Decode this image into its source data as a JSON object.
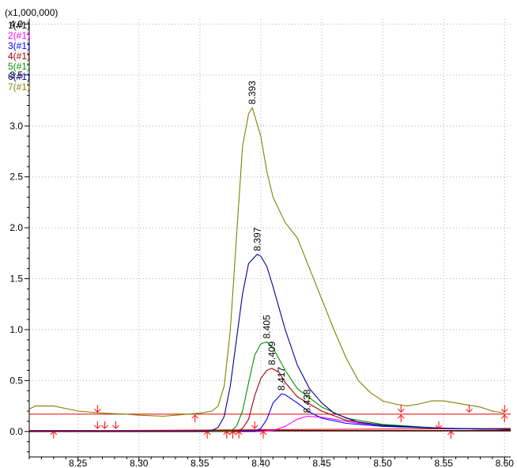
{
  "chart_data": {
    "type": "line",
    "multiplier_label": "(x1,000,000)",
    "xlim": [
      8.21,
      8.605
    ],
    "ylim": [
      -0.25,
      4.05
    ],
    "x_ticks": [
      {
        "value": 8.25,
        "label": "8.25"
      },
      {
        "value": 8.3,
        "label": "8.30"
      },
      {
        "value": 8.35,
        "label": "8.35"
      },
      {
        "value": 8.4,
        "label": "8.40"
      },
      {
        "value": 8.45,
        "label": "8.45"
      },
      {
        "value": 8.5,
        "label": "8.50"
      },
      {
        "value": 8.55,
        "label": "8.55"
      },
      {
        "value": 8.6,
        "label": "8.60"
      }
    ],
    "y_ticks": [
      {
        "value": 0.0,
        "label": "0.0"
      },
      {
        "value": 0.5,
        "label": "0.5"
      },
      {
        "value": 1.0,
        "label": "1.0"
      },
      {
        "value": 1.5,
        "label": "1.5"
      },
      {
        "value": 2.0,
        "label": "2.0"
      },
      {
        "value": 2.5,
        "label": "2.5"
      },
      {
        "value": 3.0,
        "label": "3.0"
      },
      {
        "value": 3.5,
        "label": "3.5"
      },
      {
        "value": 4.0,
        "label": "4.0"
      }
    ],
    "grid": true,
    "legend_position": "top-left",
    "series": [
      {
        "name": "1(#1)",
        "color": "#000000",
        "x": [
          8.21,
          8.3,
          8.4,
          8.5,
          8.605
        ],
        "y": [
          0.0,
          0.0,
          0.005,
          0.005,
          0.005
        ]
      },
      {
        "name": "2(#1)",
        "color": "#ff00ff",
        "x": [
          8.21,
          8.4,
          8.41,
          8.42,
          8.43,
          8.438,
          8.45,
          8.46,
          8.48,
          8.5,
          8.53,
          8.56,
          8.605
        ],
        "y": [
          0.0,
          0.0,
          0.01,
          0.05,
          0.12,
          0.15,
          0.14,
          0.12,
          0.08,
          0.06,
          0.04,
          0.03,
          0.02
        ]
      },
      {
        "name": "3(#1)",
        "color": "#0000ff",
        "x": [
          8.21,
          8.395,
          8.4,
          8.405,
          8.41,
          8.417,
          8.42,
          8.43,
          8.44,
          8.45,
          8.47,
          8.5,
          8.55,
          8.605
        ],
        "y": [
          0.0,
          0.0,
          0.03,
          0.12,
          0.28,
          0.37,
          0.36,
          0.28,
          0.19,
          0.13,
          0.08,
          0.05,
          0.03,
          0.02
        ]
      },
      {
        "name": "4(#1)",
        "color": "#a00000",
        "x": [
          8.21,
          8.38,
          8.385,
          8.39,
          8.395,
          8.4,
          8.405,
          8.409,
          8.415,
          8.42,
          8.43,
          8.45,
          8.47,
          8.5,
          8.55,
          8.605
        ],
        "y": [
          0.0,
          0.0,
          0.03,
          0.12,
          0.35,
          0.52,
          0.6,
          0.62,
          0.58,
          0.48,
          0.34,
          0.2,
          0.11,
          0.06,
          0.03,
          0.02
        ]
      },
      {
        "name": "5(#1)",
        "color": "#009000",
        "x": [
          8.21,
          8.375,
          8.38,
          8.385,
          8.39,
          8.395,
          8.4,
          8.405,
          8.41,
          8.42,
          8.43,
          8.45,
          8.47,
          8.5,
          8.55,
          8.605
        ],
        "y": [
          0.0,
          0.0,
          0.05,
          0.2,
          0.48,
          0.75,
          0.86,
          0.88,
          0.82,
          0.6,
          0.42,
          0.24,
          0.13,
          0.07,
          0.03,
          0.02
        ]
      },
      {
        "name": "6(#1)",
        "color": "#000090",
        "x": [
          8.21,
          8.355,
          8.36,
          8.365,
          8.37,
          8.375,
          8.38,
          8.385,
          8.39,
          8.397,
          8.4,
          8.405,
          8.41,
          8.42,
          8.43,
          8.44,
          8.45,
          8.46,
          8.48,
          8.5,
          8.55,
          8.605
        ],
        "y": [
          0.0,
          0.0,
          0.01,
          0.04,
          0.15,
          0.45,
          0.9,
          1.35,
          1.65,
          1.74,
          1.72,
          1.62,
          1.42,
          1.0,
          0.65,
          0.42,
          0.28,
          0.18,
          0.09,
          0.06,
          0.03,
          0.02
        ]
      },
      {
        "name": "7(#1)",
        "color": "#808000",
        "x": [
          8.21,
          8.215,
          8.23,
          8.25,
          8.27,
          8.29,
          8.3,
          8.32,
          8.34,
          8.35,
          8.36,
          8.365,
          8.37,
          8.375,
          8.38,
          8.385,
          8.39,
          8.393,
          8.4,
          8.405,
          8.41,
          8.42,
          8.43,
          8.44,
          8.45,
          8.46,
          8.47,
          8.48,
          8.49,
          8.5,
          8.51,
          8.52,
          8.53,
          8.54,
          8.55,
          8.56,
          8.57,
          8.58,
          8.59,
          8.6
        ],
        "y": [
          0.22,
          0.25,
          0.25,
          0.2,
          0.18,
          0.17,
          0.16,
          0.15,
          0.17,
          0.18,
          0.2,
          0.25,
          0.45,
          1.0,
          1.9,
          2.8,
          3.12,
          3.18,
          2.9,
          2.55,
          2.3,
          2.05,
          1.9,
          1.6,
          1.3,
          1.0,
          0.72,
          0.5,
          0.38,
          0.3,
          0.27,
          0.25,
          0.27,
          0.3,
          0.3,
          0.28,
          0.26,
          0.24,
          0.2,
          0.18
        ]
      }
    ],
    "peak_labels": [
      {
        "text": "8.393",
        "x": 8.393,
        "y": 3.18
      },
      {
        "text": "8.397",
        "x": 8.397,
        "y": 1.74
      },
      {
        "text": "8.405",
        "x": 8.405,
        "y": 0.88
      },
      {
        "text": "8.409",
        "x": 8.409,
        "y": 0.62
      },
      {
        "text": "8.417",
        "x": 8.417,
        "y": 0.37
      },
      {
        "text": "8.438",
        "x": 8.438,
        "y": 0.15
      }
    ],
    "integration_baselines": [
      {
        "x": [
          8.21,
          8.605
        ],
        "y": [
          0.17,
          0.17
        ]
      },
      {
        "x": [
          8.21,
          8.605
        ],
        "y": [
          0.01,
          0.01
        ]
      },
      {
        "x": [
          8.21,
          8.605
        ],
        "y": [
          0.005,
          0.03
        ]
      }
    ],
    "integration_markers": [
      {
        "x": 8.23,
        "y": 0.0,
        "dir": "up"
      },
      {
        "x": 8.266,
        "y": 0.19,
        "dir": "down"
      },
      {
        "x": 8.266,
        "y": 0.03,
        "dir": "down"
      },
      {
        "x": 8.272,
        "y": 0.03,
        "dir": "down"
      },
      {
        "x": 8.281,
        "y": 0.03,
        "dir": "down"
      },
      {
        "x": 8.346,
        "y": 0.16,
        "dir": "up"
      },
      {
        "x": 8.356,
        "y": 0.0,
        "dir": "up"
      },
      {
        "x": 8.372,
        "y": 0.0,
        "dir": "up"
      },
      {
        "x": 8.377,
        "y": 0.0,
        "dir": "up"
      },
      {
        "x": 8.382,
        "y": 0.0,
        "dir": "up"
      },
      {
        "x": 8.395,
        "y": 0.03,
        "dir": "down"
      },
      {
        "x": 8.402,
        "y": 0.0,
        "dir": "up"
      },
      {
        "x": 8.515,
        "y": 0.19,
        "dir": "down"
      },
      {
        "x": 8.515,
        "y": 0.16,
        "dir": "up"
      },
      {
        "x": 8.546,
        "y": 0.03,
        "dir": "down"
      },
      {
        "x": 8.556,
        "y": 0.0,
        "dir": "up"
      },
      {
        "x": 8.571,
        "y": 0.19,
        "dir": "down"
      },
      {
        "x": 8.6,
        "y": 0.16,
        "dir": "up"
      },
      {
        "x": 8.6,
        "y": 0.19,
        "dir": "down"
      }
    ],
    "baseline_color": "#e00000",
    "marker_color": "#ff0000"
  }
}
